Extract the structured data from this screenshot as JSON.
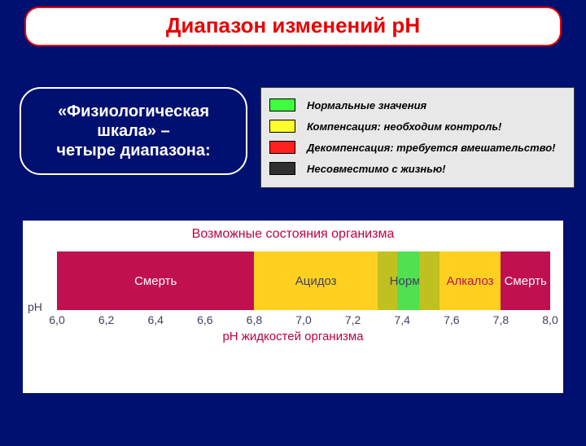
{
  "title": "Диапазон изменений рН",
  "pill": {
    "line1": "«Физиологическая",
    "line2": "шкала» –",
    "line3": "четыре диапазона:"
  },
  "legend": {
    "background": "#e8e8e8",
    "items": [
      {
        "color": "#40ff40",
        "label": "Нормальные значения"
      },
      {
        "color": "#ffff30",
        "label": "Компенсация: необходим контроль!"
      },
      {
        "color": "#ff2020",
        "label": "Декомпенсация: требуется вмешательство!"
      },
      {
        "color": "#303030",
        "label": "Несовместимо с жизнью!"
      }
    ]
  },
  "chart": {
    "title": "Возможные состояния организма",
    "x_title": "pH жидкостей организма",
    "ph_label": "pH",
    "background": "#ffffff",
    "title_color": "#c00040",
    "tick_color": "#404060",
    "xmin": 6.0,
    "xmax": 8.0,
    "ticks": [
      "6,0",
      "6,2",
      "6,4",
      "6,6",
      "6,8",
      "7,0",
      "7,2",
      "7,4",
      "7,6",
      "7,8",
      "8,0"
    ],
    "tick_vals": [
      6.0,
      6.2,
      6.4,
      6.6,
      6.8,
      7.0,
      7.2,
      7.4,
      7.6,
      7.8,
      8.0
    ],
    "segments": [
      {
        "from": 6.0,
        "to": 6.8,
        "color": "#c01050",
        "label": "Смерть",
        "text": "#ffffff"
      },
      {
        "from": 6.8,
        "to": 7.3,
        "color": "#ffd020",
        "label": "Ацидоз",
        "text": "#404060"
      },
      {
        "from": 7.3,
        "to": 7.38,
        "color": "#c0c020",
        "label": "",
        "text": "#404060"
      },
      {
        "from": 7.38,
        "to": 7.47,
        "color": "#50e050",
        "label": "Норма",
        "text": "#404060"
      },
      {
        "from": 7.47,
        "to": 7.55,
        "color": "#c0c020",
        "label": "",
        "text": "#404060"
      },
      {
        "from": 7.55,
        "to": 7.8,
        "color": "#ffd020",
        "label": "Алкалоз",
        "text": "#c01050"
      },
      {
        "from": 7.8,
        "to": 8.0,
        "color": "#c01050",
        "label": "Смерть",
        "text": "#ffffff"
      }
    ]
  }
}
